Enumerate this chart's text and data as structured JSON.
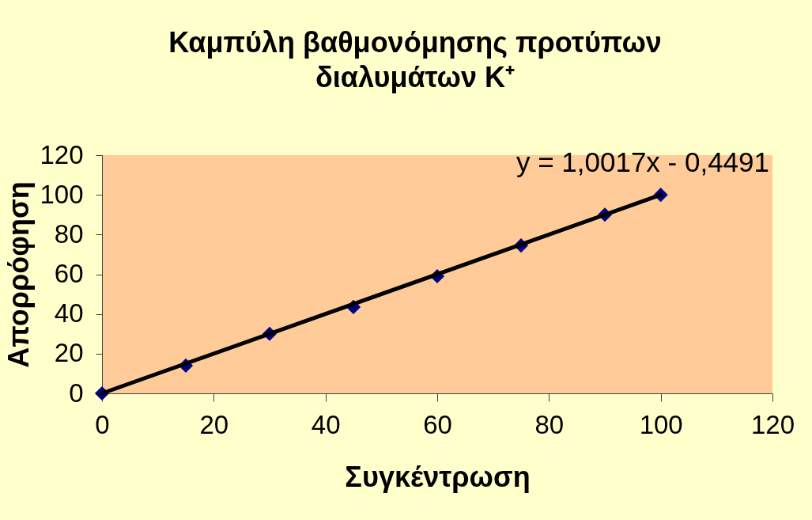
{
  "chart_data": {
    "type": "scatter",
    "title": "Καμπύλη βαθμονόμησης προτύπων διαλυμάτων K⁺",
    "xlabel": "Συγκέντρωση",
    "ylabel": "Απορρόφηση",
    "x": [
      0,
      15,
      30,
      45,
      60,
      75,
      90,
      100
    ],
    "series": [
      {
        "color": "#000080",
        "marker": "diamond",
        "values": [
          0,
          14,
          30,
          43.5,
          59,
          74.5,
          90,
          100
        ]
      },
      {
        "type": "line",
        "x": [
          0,
          100
        ],
        "values": [
          0,
          100
        ],
        "color": "#000000"
      }
    ],
    "line_style": "solid",
    "xlim": [
      0,
      120
    ],
    "ylim": [
      0,
      120
    ],
    "xticks": [
      0,
      20,
      40,
      60,
      80,
      100,
      120
    ],
    "yticks": [
      0,
      20,
      40,
      60,
      80,
      100,
      120
    ],
    "annotations": [
      "y = 1,0017x - 0,4491"
    ]
  }
}
